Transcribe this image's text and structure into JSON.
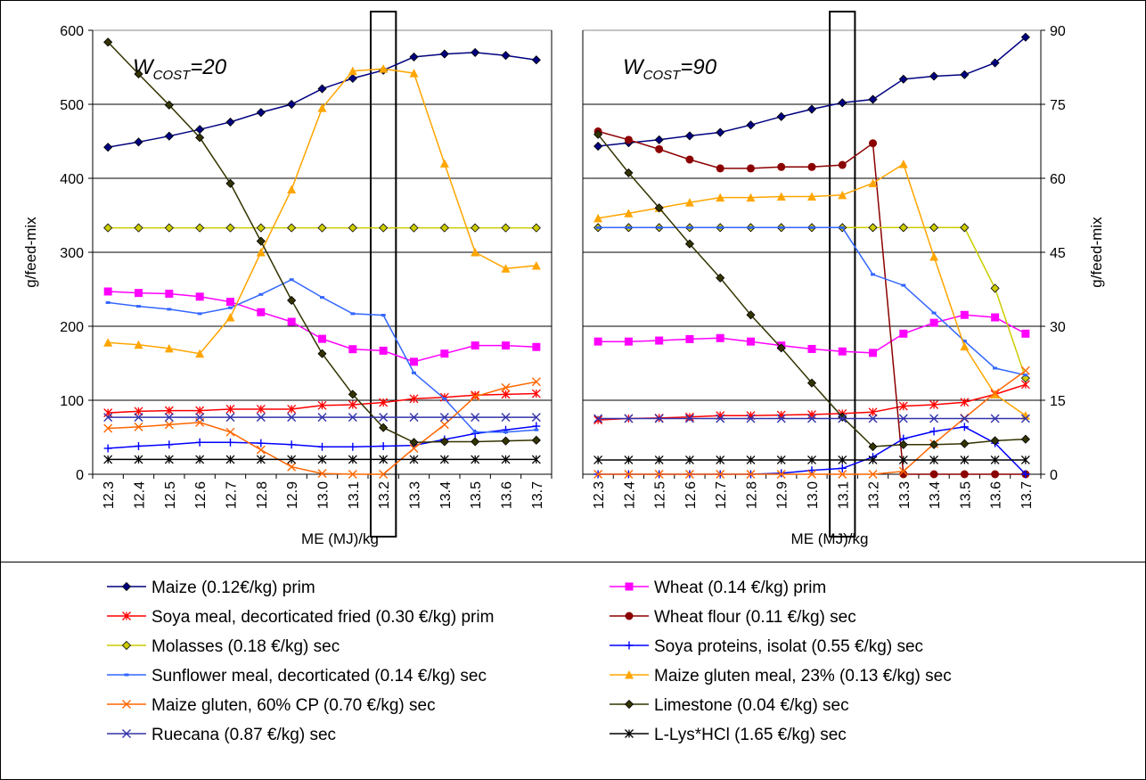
{
  "chart_data": {
    "type": "line",
    "x": [
      "12.3",
      "12.4",
      "12.5",
      "12.6",
      "12.7",
      "12.8",
      "12.9",
      "13.0",
      "13.1",
      "13.2",
      "13.3",
      "13.4",
      "13.5",
      "13.6",
      "13.7"
    ],
    "xlabel": "ME (MJ)/kg",
    "panels": [
      {
        "title_main": "W",
        "title_sub": "COST",
        "title_tail": "=20",
        "ylabel": "g/feed-mix",
        "ylim": [
          0,
          600
        ],
        "yticks": [
          "0",
          "100",
          "200",
          "300",
          "400",
          "500",
          "600"
        ],
        "highlight_x": "13.2",
        "series": [
          {
            "name": "Maize (0.12€/kg) prim",
            "color": "#000080",
            "marker": "diamond",
            "values": [
              442,
              449,
              457,
              466,
              476,
              489,
              500,
              521,
              535,
              546,
              564,
              568,
              570,
              566,
              560
            ]
          },
          {
            "name": "Wheat (0.14 €/kg) prim",
            "color": "#FF00FF",
            "marker": "square",
            "values": [
              247,
              245,
              244,
              240,
              233,
              219,
              206,
              183,
              169,
              167,
              152,
              163,
              174,
              174,
              172
            ]
          },
          {
            "name": "Soya meal, decorticated fried (0.30 €/kg) prim",
            "color": "#FF0000",
            "marker": "star",
            "values": [
              83,
              85,
              86,
              86,
              88,
              88,
              88,
              93,
              94,
              97,
              102,
              104,
              107,
              108,
              109
            ]
          },
          {
            "name": "Molasses (0.18 €/kg) sec",
            "color": "#CCCC00",
            "marker": "diamond",
            "values": [
              333,
              333,
              333,
              333,
              333,
              333,
              333,
              333,
              333,
              333,
              333,
              333,
              333,
              333,
              333
            ]
          },
          {
            "name": "Soya proteins, isolat (0.55 €/kg) sec",
            "color": "#0000FF",
            "marker": "plus",
            "values": [
              35,
              38,
              40,
              43,
              43,
              42,
              40,
              37,
              37,
              38,
              39,
              47,
              55,
              60,
              65
            ]
          },
          {
            "name": "Sunflower meal, decorticated (0.14 €/kg) sec",
            "color": "#3366FF",
            "marker": "dash",
            "values": [
              232,
              227,
              223,
              217,
              225,
              243,
              263,
              239,
              217,
              215,
              137,
              102,
              57,
              57,
              60
            ]
          },
          {
            "name": "Maize gluten meal, 23% (0.13 €/kg) sec",
            "color": "#FFA500",
            "marker": "triangle",
            "values": [
              178,
              175,
              170,
              163,
              212,
              300,
              385,
              495,
              545,
              548,
              542,
              420,
              300,
              278,
              282
            ]
          },
          {
            "name": "Maize gluten, 60% CP (0.70 €/kg) sec",
            "color": "#FF6600",
            "marker": "x",
            "values": [
              62,
              64,
              67,
              70,
              57,
              33,
              10,
              1,
              0,
              0,
              35,
              67,
              105,
              117,
              125
            ]
          },
          {
            "name": "Limestone (0.04 €/kg) sec",
            "color": "#333300",
            "marker": "diamond",
            "values": [
              584,
              541,
              499,
              455,
              393,
              315,
              235,
              163,
              108,
              63,
              43,
              44,
              44,
              45,
              46
            ]
          },
          {
            "name": "Ruecana (0.87 €/kg) sec",
            "color": "#3333AA",
            "marker": "x",
            "values": [
              77,
              77,
              77,
              77,
              77,
              77,
              77,
              77,
              77,
              77,
              77,
              77,
              77,
              77,
              77
            ]
          },
          {
            "name": "L-Lys*HCl (1.65 €/kg) sec",
            "color": "#000000",
            "marker": "star",
            "values": [
              20,
              20,
              20,
              20,
              20,
              20,
              20,
              20,
              20,
              20,
              20,
              20,
              20,
              20,
              20
            ]
          }
        ]
      },
      {
        "title_main": "W",
        "title_sub": "COST",
        "title_tail": "=90",
        "ylabel": "g/feed-mix",
        "ylim": [
          0,
          90
        ],
        "yticks": [
          "0",
          "15",
          "30",
          "45",
          "60",
          "75",
          "90"
        ],
        "highlight_x": "13.1",
        "series": [
          {
            "name": "Maize (0.12€/kg) prim",
            "color": "#000080",
            "marker": "diamond",
            "values": [
              66.5,
              67.2,
              67.8,
              68.6,
              69.3,
              70.8,
              72.5,
              74.0,
              75.3,
              76.0,
              80.1,
              80.7,
              81.0,
              83.4,
              88.6
            ]
          },
          {
            "name": "Wheat (0.14 €/kg) prim",
            "color": "#FF00FF",
            "marker": "square",
            "values": [
              26.9,
              26.9,
              27.1,
              27.4,
              27.6,
              26.9,
              26.1,
              25.4,
              24.9,
              24.6,
              28.5,
              30.7,
              32.3,
              31.8,
              28.5
            ]
          },
          {
            "name": "Soya meal, decorticated fried (0.30 €/kg) prim",
            "color": "#FF0000",
            "marker": "star",
            "values": [
              11.0,
              11.3,
              11.4,
              11.6,
              11.9,
              11.9,
              12.0,
              12.1,
              12.3,
              12.6,
              13.8,
              14.1,
              14.6,
              16.2,
              18.2
            ]
          },
          {
            "name": "Wheat flour (0.11 €/kg) sec",
            "color": "#8B0000",
            "marker": "circle",
            "values": [
              69.5,
              67.8,
              65.9,
              63.8,
              62.0,
              62.0,
              62.3,
              62.3,
              62.7,
              67.1,
              0,
              0,
              0,
              0,
              0
            ]
          },
          {
            "name": "Molasses (0.18 €/kg) sec",
            "color": "#CCCC00",
            "marker": "diamond",
            "values": [
              50,
              50,
              50,
              50,
              50,
              50,
              50,
              50,
              50,
              50,
              50,
              50,
              50,
              37.7,
              19.5
            ]
          },
          {
            "name": "Soya proteins, isolat (0.55 €/kg) sec",
            "color": "#0000FF",
            "marker": "plus",
            "values": [
              0,
              0,
              0,
              0,
              0,
              0,
              0.2,
              0.8,
              1.2,
              3.5,
              7.2,
              8.7,
              9.6,
              6.3,
              0
            ]
          },
          {
            "name": "Sunflower meal, decorticated (0.14 €/kg) sec",
            "color": "#3366FF",
            "marker": "dash",
            "values": [
              50,
              50,
              50,
              50,
              50,
              50,
              50,
              50,
              50,
              40.5,
              38.3,
              32.7,
              27.0,
              21.5,
              20.1
            ]
          },
          {
            "name": "Maize gluten meal, 23% (0.13 €/kg) sec",
            "color": "#FFA500",
            "marker": "triangle",
            "values": [
              51.9,
              52.9,
              54.0,
              55.1,
              56.1,
              56.1,
              56.3,
              56.3,
              56.6,
              59.0,
              62.9,
              44.1,
              25.9,
              16.2,
              11.9
            ]
          },
          {
            "name": "Maize gluten, 60% CP (0.70 €/kg) sec",
            "color": "#FF6600",
            "marker": "x",
            "values": [
              0,
              0,
              0,
              0,
              0,
              0,
              0,
              0,
              0,
              0,
              0.6,
              6.2,
              11.4,
              16.5,
              21.0
            ]
          },
          {
            "name": "Limestone (0.04 €/kg) sec",
            "color": "#333300",
            "marker": "diamond",
            "values": [
              68.9,
              61.1,
              54.0,
              46.7,
              39.8,
              32.3,
              25.6,
              18.5,
              11.6,
              5.6,
              6.0,
              6.0,
              6.2,
              6.8,
              7.1
            ]
          },
          {
            "name": "Ruecana (0.87 €/kg) sec",
            "color": "#3333AA",
            "marker": "x",
            "values": [
              11.3,
              11.3,
              11.3,
              11.3,
              11.3,
              11.3,
              11.3,
              11.3,
              11.3,
              11.3,
              11.3,
              11.3,
              11.3,
              11.3,
              11.3
            ]
          },
          {
            "name": "L-Lys*HCl (1.65 €/kg) sec",
            "color": "#000000",
            "marker": "star",
            "values": [
              2.9,
              2.9,
              2.9,
              2.9,
              2.9,
              2.9,
              2.9,
              2.9,
              2.9,
              2.9,
              2.9,
              2.9,
              2.9,
              2.9,
              2.9
            ]
          }
        ]
      }
    ],
    "legend": {
      "placement": "bottom",
      "entries": [
        {
          "name": "Maize (0.12€/kg) prim",
          "color": "#000080",
          "marker": "diamond"
        },
        {
          "name": "Wheat (0.14 €/kg) prim",
          "color": "#FF00FF",
          "marker": "square"
        },
        {
          "name": "Soya meal, decorticated fried (0.30 €/kg) prim",
          "color": "#FF0000",
          "marker": "star"
        },
        {
          "name": "Wheat flour (0.11 €/kg) sec",
          "color": "#8B0000",
          "marker": "circle"
        },
        {
          "name": "Molasses (0.18 €/kg) sec",
          "color": "#CCCC00",
          "marker": "diamond"
        },
        {
          "name": "Soya proteins, isolat (0.55 €/kg) sec",
          "color": "#0000FF",
          "marker": "plus"
        },
        {
          "name": "Sunflower meal, decorticated (0.14 €/kg) sec",
          "color": "#3366FF",
          "marker": "dash"
        },
        {
          "name": "Maize gluten meal, 23% (0.13 €/kg) sec",
          "color": "#FFA500",
          "marker": "triangle"
        },
        {
          "name": "Maize gluten, 60% CP (0.70 €/kg) sec",
          "color": "#FF6600",
          "marker": "x"
        },
        {
          "name": "Limestone (0.04 €/kg) sec",
          "color": "#333300",
          "marker": "diamond"
        },
        {
          "name": "Ruecana (0.87 €/kg) sec",
          "color": "#3333AA",
          "marker": "x"
        },
        {
          "name": "L-Lys*HCl (1.65 €/kg) sec",
          "color": "#000000",
          "marker": "star"
        }
      ]
    }
  }
}
